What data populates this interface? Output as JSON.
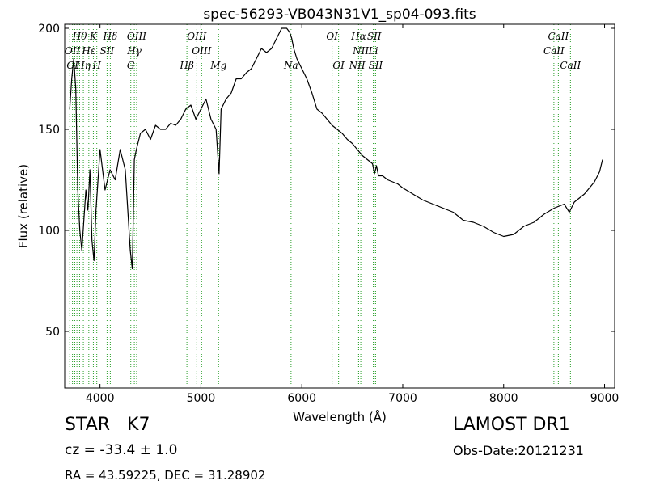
{
  "chart_data": {
    "type": "line",
    "title": "spec-56293-VB043N31V1_sp04-093.fits",
    "xlabel": "Wavelength (Å)",
    "ylabel": "Flux (relative)",
    "xlim": [
      3650,
      9100
    ],
    "ylim": [
      22,
      202
    ],
    "xticks": [
      4000,
      5000,
      6000,
      7000,
      8000,
      9000
    ],
    "yticks": [
      50,
      100,
      150,
      200
    ],
    "grid": false,
    "line_color": "#000000",
    "marker_color": "#2ca02c",
    "series": [
      {
        "x": [
          3700,
          3720,
          3740,
          3760,
          3780,
          3800,
          3820,
          3840,
          3860,
          3880,
          3900,
          3920,
          3940,
          3960,
          3980,
          4000,
          4050,
          4100,
          4150,
          4200,
          4250,
          4300,
          4320,
          4340,
          4360,
          4400,
          4450,
          4500,
          4550,
          4600,
          4650,
          4700,
          4750,
          4800,
          4850,
          4900,
          4950,
          5000,
          5050,
          5100,
          5150,
          5180,
          5200,
          5250,
          5300,
          5350,
          5400,
          5450,
          5500,
          5550,
          5600,
          5650,
          5700,
          5750,
          5800,
          5850,
          5880,
          5900,
          5920,
          5950,
          6000,
          6050,
          6100,
          6150,
          6200,
          6250,
          6300,
          6350,
          6400,
          6450,
          6500,
          6550,
          6600,
          6650,
          6700,
          6720,
          6740,
          6760,
          6800,
          6850,
          6900,
          6950,
          7000,
          7100,
          7200,
          7300,
          7400,
          7500,
          7600,
          7700,
          7800,
          7900,
          8000,
          8100,
          8200,
          8300,
          8400,
          8500,
          8600,
          8650,
          8700,
          8800,
          8900,
          8950,
          8980
        ],
        "y": [
          160,
          175,
          185,
          170,
          120,
          100,
          90,
          105,
          120,
          110,
          130,
          95,
          85,
          110,
          125,
          140,
          120,
          130,
          125,
          140,
          130,
          90,
          81,
          135,
          140,
          148,
          150,
          145,
          152,
          150,
          150,
          153,
          152,
          155,
          160,
          162,
          155,
          160,
          165,
          155,
          150,
          128,
          160,
          165,
          168,
          175,
          175,
          178,
          180,
          185,
          190,
          188,
          190,
          195,
          200,
          200,
          198,
          195,
          190,
          185,
          180,
          175,
          168,
          160,
          158,
          155,
          152,
          150,
          148,
          145,
          143,
          140,
          137,
          135,
          133,
          128,
          132,
          127,
          127,
          125,
          124,
          123,
          121,
          118,
          115,
          113,
          111,
          109,
          105,
          104,
          102,
          99,
          97,
          98,
          102,
          104,
          108,
          111,
          113,
          109,
          114,
          118,
          124,
          129,
          135
        ]
      }
    ],
    "line_labels": [
      {
        "label": "Hθ",
        "x": 3798,
        "row": 1
      },
      {
        "label": "K",
        "x": 3934,
        "row": 1
      },
      {
        "label": "Hδ",
        "x": 4102,
        "row": 1
      },
      {
        "label": "OIII",
        "x": 4363,
        "row": 1
      },
      {
        "label": "OIII",
        "x": 4959,
        "row": 1
      },
      {
        "label": "OI",
        "x": 6300,
        "row": 1
      },
      {
        "label": "Hα",
        "x": 6563,
        "row": 1
      },
      {
        "label": "SII",
        "x": 6717,
        "row": 1
      },
      {
        "label": "CaII",
        "x": 8542,
        "row": 1
      },
      {
        "label": "OII",
        "x": 3727,
        "row": 2
      },
      {
        "label": "Hε",
        "x": 3889,
        "row": 2
      },
      {
        "label": "SII",
        "x": 4070,
        "row": 2
      },
      {
        "label": "Hγ",
        "x": 4340,
        "row": 2
      },
      {
        "label": "OIII",
        "x": 5007,
        "row": 2
      },
      {
        "label": "NII",
        "x": 6584,
        "row": 2
      },
      {
        "label": "Li",
        "x": 6708,
        "row": 2
      },
      {
        "label": "CaII",
        "x": 8498,
        "row": 2
      },
      {
        "label": "OI",
        "x": 3727,
        "row": 3
      },
      {
        "label": "Hη",
        "x": 3835,
        "row": 3
      },
      {
        "label": "H",
        "x": 3968,
        "row": 3
      },
      {
        "label": "G",
        "x": 4305,
        "row": 3
      },
      {
        "label": "Hβ",
        "x": 4861,
        "row": 3
      },
      {
        "label": "Mg",
        "x": 5175,
        "row": 3
      },
      {
        "label": "Na",
        "x": 5893,
        "row": 3
      },
      {
        "label": "OI",
        "x": 6364,
        "row": 3
      },
      {
        "label": "NII",
        "x": 6548,
        "row": 3
      },
      {
        "label": "SII",
        "x": 6731,
        "row": 3
      },
      {
        "label": "CaII",
        "x": 8662,
        "row": 3
      }
    ],
    "line_markers": [
      3700,
      3727,
      3750,
      3771,
      3798,
      3835,
      3889,
      3934,
      3968,
      4070,
      4102,
      4305,
      4340,
      4363,
      4861,
      4959,
      5007,
      5175,
      5893,
      6300,
      6364,
      6548,
      6563,
      6584,
      6708,
      6717,
      6731,
      8498,
      8542,
      8662
    ]
  },
  "footer": {
    "object_class": "STAR",
    "subclass": "K7",
    "cz_text": "cz = -33.4 ± 1.0",
    "radec_text": "RA = 43.59225, DEC = 31.28902",
    "survey": "LAMOST DR1",
    "obs_date": "Obs-Date:20121231"
  }
}
